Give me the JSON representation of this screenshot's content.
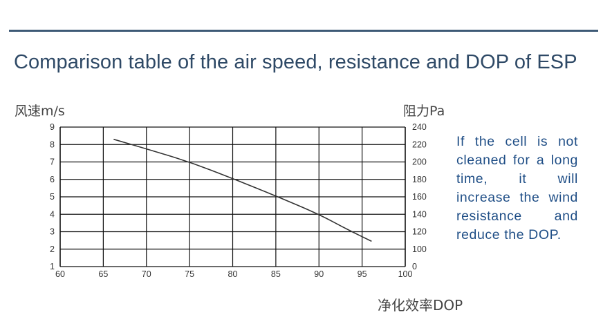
{
  "header": {
    "title": "Comparison table of the air speed, resistance and DOP of ESP"
  },
  "description": {
    "text": "If the cell is not cleaned for a long time, it will increase the wind resistance and reduce the DOP."
  },
  "chart_data": {
    "type": "line",
    "title": "",
    "xlabel": "净化效率DOP",
    "ylabel_left": "风速m/s",
    "ylabel_right": "阻力Pa",
    "xlim": [
      60,
      100
    ],
    "ylim_left": [
      1,
      9
    ],
    "ylim_right": [
      0,
      240
    ],
    "x_ticks": [
      60,
      65,
      70,
      75,
      80,
      85,
      90,
      95,
      100
    ],
    "y_ticks_left": [
      1,
      2,
      3,
      4,
      5,
      6,
      7,
      8,
      9
    ],
    "y_ticks_right": [
      0,
      100,
      120,
      140,
      160,
      180,
      200,
      220,
      240
    ],
    "grid": true,
    "series": [
      {
        "x": [
          66.2,
          70,
          75,
          80,
          85,
          90,
          93,
          96.1
        ],
        "y": [
          8.3,
          7.75,
          7.0,
          6.05,
          5.05,
          4.0,
          3.2,
          2.45
        ]
      }
    ],
    "colors": {
      "line": "#333333",
      "grid": "#111111",
      "tick_label": "#333333"
    }
  }
}
